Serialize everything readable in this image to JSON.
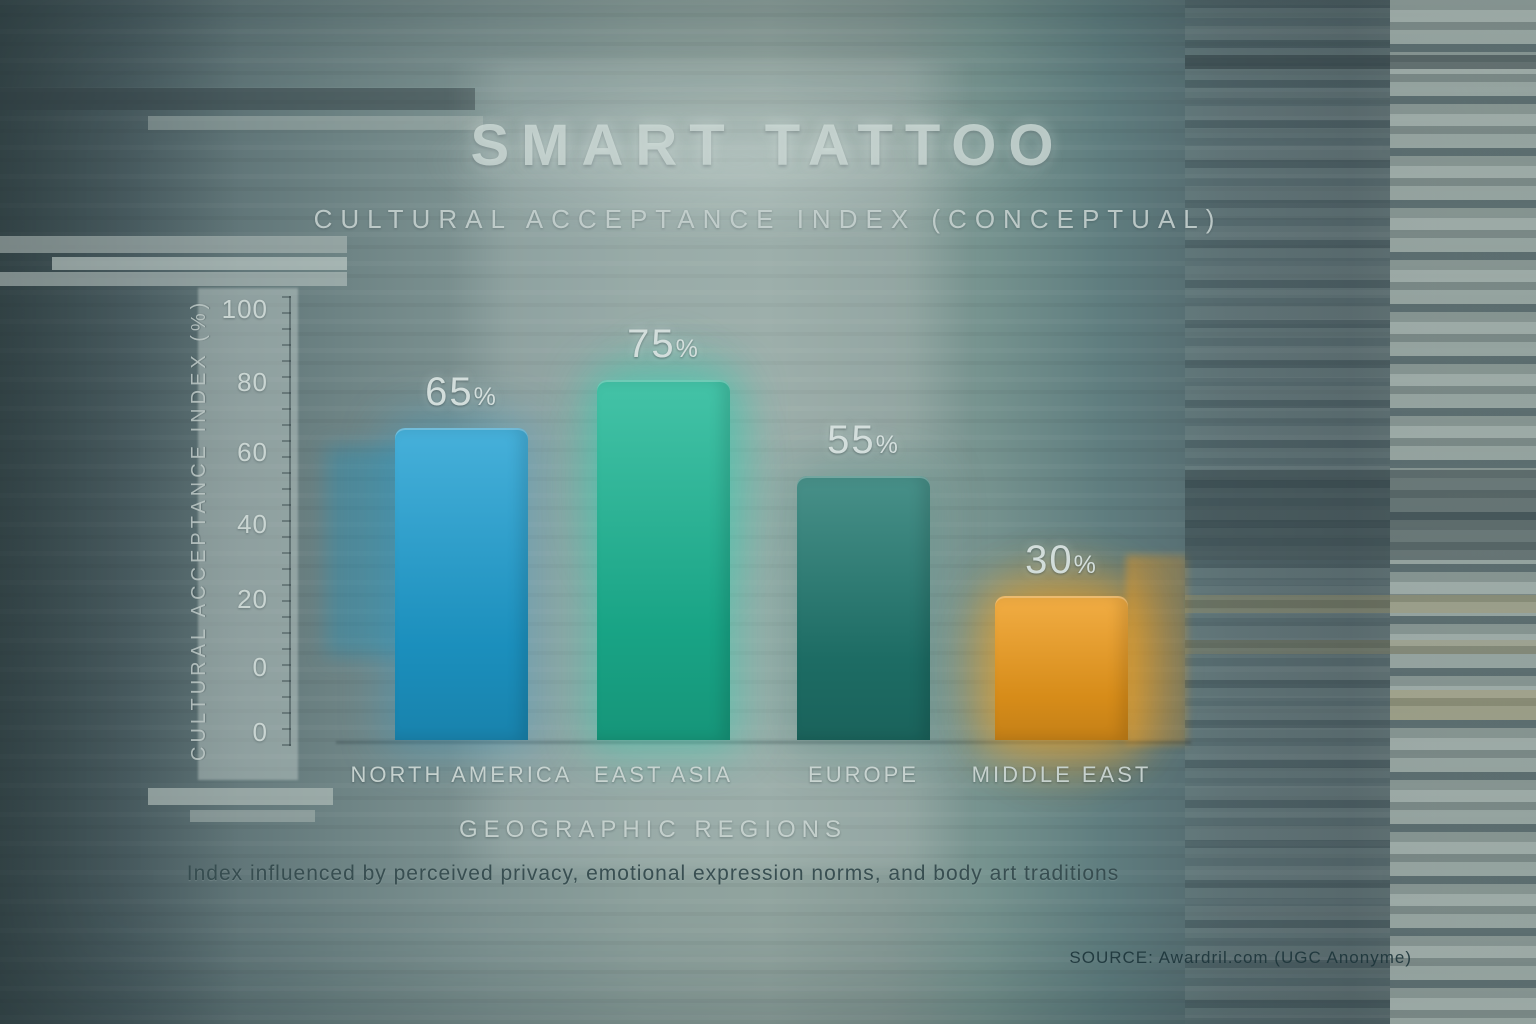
{
  "header": {
    "title": "SMART TATTOO",
    "subtitle": "CULTURAL ACCEPTANCE INDEX (CONCEPTUAL)"
  },
  "chart_data": {
    "type": "bar",
    "title": "SMART TATTOO",
    "subtitle": "CULTURAL ACCEPTANCE INDEX (CONCEPTUAL)",
    "categories": [
      "NORTH AMERICA",
      "EAST ASIA",
      "EUROPE",
      "MIDDLE EAST"
    ],
    "values": [
      65,
      75,
      55,
      30
    ],
    "value_suffix": "%",
    "xlabel": "GEOGRAPHIC REGIONS",
    "ylabel": "CULTURAL ACCEPTANCE INDEX (%)",
    "ylim": [
      0,
      100
    ],
    "yticks": [
      0,
      20,
      40,
      60,
      80,
      100
    ],
    "ytick_labels_displayed": [
      "100",
      "80",
      "60",
      "40",
      "20",
      "0",
      "0"
    ],
    "grid": false,
    "legend": false,
    "bar_colors": [
      "#1e9fd2",
      "#1bb694",
      "#20786f",
      "#ef9c1c"
    ],
    "bar_glow_colors": [
      "rgba(30,160,215,0.30)",
      "rgba(28,210,175,0.45)",
      "rgba(25,115,105,0.25)",
      "rgba(245,165,35,0.60)"
    ]
  },
  "footnote": "Index influenced by perceived privacy, emotional expression norms, and body art traditions",
  "source": "SOURCE: Awardril.com (UGC Anonyme)",
  "colors": {
    "background": "#6d8281",
    "text_light": "#cdd8d6",
    "text_dim": "#344a4d",
    "text_dark": "#1c343a",
    "accent_blue": "#1e9fd2",
    "accent_teal": "#1bb694",
    "accent_dark_teal": "#20786f",
    "accent_orange": "#ef9c1c"
  }
}
